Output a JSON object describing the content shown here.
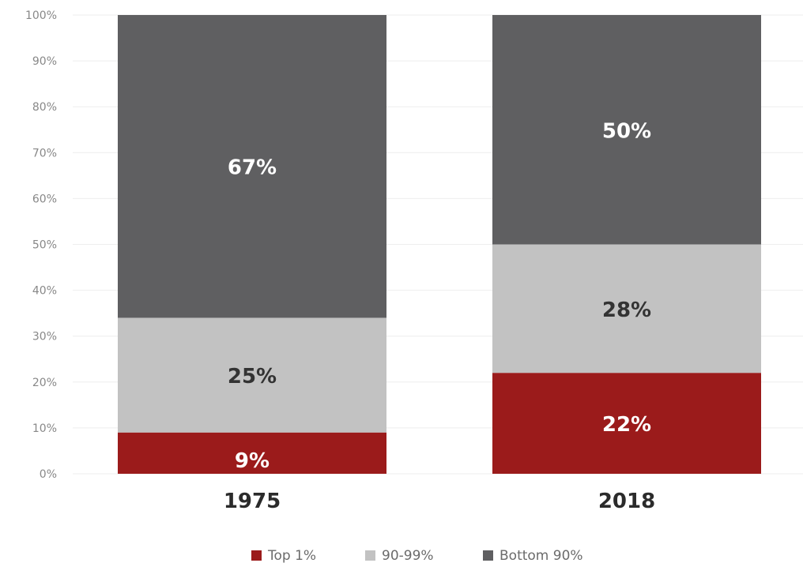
{
  "chart_data": {
    "type": "bar",
    "stacked": true,
    "categories": [
      "1975",
      "2018"
    ],
    "series": [
      {
        "name": "Top 1%",
        "values": [
          9,
          22
        ],
        "color": "#9b1b1b",
        "label_color": "#ffffff"
      },
      {
        "name": "90-99%",
        "values": [
          25,
          28
        ],
        "color": "#c2c2c2",
        "label_color": "#333333"
      },
      {
        "name": "Bottom 90%",
        "values": [
          67,
          50
        ],
        "color": "#5f5f61",
        "label_color": "#ffffff"
      }
    ],
    "data_labels": [
      [
        "9%",
        "22%"
      ],
      [
        "25%",
        "28%"
      ],
      [
        "67%",
        "50%"
      ]
    ],
    "ylim": [
      0,
      100
    ],
    "yticks": [
      0,
      10,
      20,
      30,
      40,
      50,
      60,
      70,
      80,
      90,
      100
    ],
    "ytick_labels": [
      "0%",
      "10%",
      "20%",
      "30%",
      "40%",
      "50%",
      "60%",
      "70%",
      "80%",
      "90%",
      "100%"
    ],
    "grid": true,
    "legend_position": "bottom-center"
  }
}
